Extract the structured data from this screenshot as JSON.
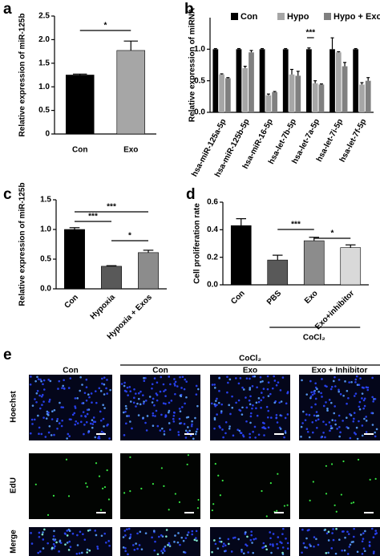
{
  "chart_data": [
    {
      "type": "bar",
      "panel": "a",
      "ylabel": "Relative expression of miR-125b",
      "categories": [
        "Con",
        "Exo"
      ],
      "values": [
        1.25,
        1.77
      ],
      "errors": [
        0.02,
        0.2
      ],
      "colors": [
        "#000000",
        "#a6a6a6"
      ],
      "ylim": [
        0,
        2.5
      ],
      "yticks": [
        0,
        0.5,
        {
          "value": 1,
          "label": "1.0"
        },
        1.5,
        {
          "value": 2,
          "label": "2.0"
        },
        2.5
      ],
      "annotations": [
        "*"
      ]
    },
    {
      "type": "grouped-bar",
      "panel": "b",
      "ylabel": "Relative expression of miRNA",
      "categories": [
        "hsa-miR-125a-5p",
        "hsa-miR-125b-5p",
        "hsa-miR-16-5p",
        "hsa-let-7b-5p",
        "hsa-let-7a-5p",
        "hsa-let-7i-5p",
        "hsa-let-7f-5p"
      ],
      "series": [
        {
          "name": "Con",
          "color": "#000000",
          "values": [
            1.0,
            1.0,
            1.0,
            1.0,
            1.0,
            1.0,
            1.0
          ],
          "errors": [
            0.01,
            0.01,
            0.01,
            0.01,
            0.02,
            0.18,
            0.01
          ]
        },
        {
          "name": "Hypo",
          "color": "#a6a6a6",
          "values": [
            0.6,
            0.7,
            0.27,
            0.6,
            0.46,
            0.95,
            0.44
          ],
          "errors": [
            0.01,
            0.03,
            0.02,
            0.08,
            0.04,
            0.01,
            0.03
          ]
        },
        {
          "name": "Hypo + Exo",
          "color": "#808080",
          "values": [
            0.54,
            0.95,
            0.32,
            0.58,
            0.44,
            0.73,
            0.5
          ],
          "errors": [
            0.01,
            0.03,
            0.01,
            0.07,
            0.01,
            0.06,
            0.05
          ]
        }
      ],
      "ylim": [
        0,
        1.5
      ],
      "yticks": [
        {
          "value": 0,
          "label": "0.0"
        },
        0.5,
        {
          "value": 1,
          "label": "1.0"
        }
      ],
      "annotations": [
        "***"
      ]
    },
    {
      "type": "bar",
      "panel": "c",
      "ylabel": "Relative expression of miR-125b",
      "categories": [
        "Con",
        "Hypoxia",
        "Hypoxia + Exos"
      ],
      "values": [
        1.0,
        0.38,
        0.61
      ],
      "errors": [
        0.03,
        0.01,
        0.04
      ],
      "colors": [
        "#000000",
        "#595959",
        "#8c8c8c"
      ],
      "ylim": [
        0,
        1.5
      ],
      "yticks": [
        {
          "value": 0,
          "label": "0.0"
        },
        0.5,
        {
          "value": 1,
          "label": "1.0"
        },
        1.5
      ],
      "annotations": [
        "***",
        "***",
        "*"
      ]
    },
    {
      "type": "bar",
      "panel": "d",
      "ylabel": "Cell proliferation rate",
      "categories": [
        "Con",
        "PBS",
        "Exo",
        "Exo+inhibitor"
      ],
      "values": [
        0.43,
        0.18,
        0.32,
        0.27
      ],
      "errors": [
        0.05,
        0.035,
        0.025,
        0.02
      ],
      "colors": [
        "#000000",
        "#595959",
        "#8c8c8c",
        "#d9d9d9"
      ],
      "ylim": [
        0,
        0.6
      ],
      "yticks": [
        {
          "value": 0,
          "label": "0.0"
        },
        0.2,
        0.4,
        0.6
      ],
      "annotations": [
        "***",
        "*"
      ],
      "group_label": "CoCl₂"
    }
  ],
  "image_grid": {
    "panel": "e",
    "group_label": "CoCl₂",
    "columns": [
      "Con",
      "Con",
      "Exo",
      "Exo + Inhibitor"
    ],
    "rows": [
      "Hoechst",
      "EdU",
      "Merge"
    ]
  }
}
